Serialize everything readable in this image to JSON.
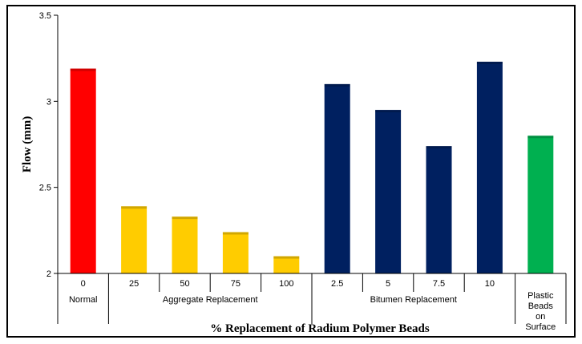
{
  "chart_data": {
    "type": "bar",
    "categories": [
      "0",
      "25",
      "50",
      "75",
      "100",
      "2.5",
      "5",
      "7.5",
      "10",
      ""
    ],
    "values": [
      3.19,
      2.39,
      2.33,
      2.24,
      2.1,
      3.1,
      2.95,
      2.74,
      3.23,
      2.8
    ],
    "colors": [
      "#ff0000",
      "#ffcc00",
      "#ffcc00",
      "#ffcc00",
      "#ffcc00",
      "#002060",
      "#002060",
      "#002060",
      "#002060",
      "#00b050"
    ],
    "groups": [
      {
        "label": "Normal",
        "count": 1
      },
      {
        "label": "Aggregate Replacement",
        "count": 4
      },
      {
        "label": "Bitumen Replacement",
        "count": 4
      },
      {
        "label": "Plastic Beads on Surface",
        "count": 1
      }
    ],
    "xlabel": "% Replacement of Radium Polymer Beads",
    "ylabel": "Flow (mm)",
    "ylim": [
      2,
      3.5
    ],
    "yticks": [
      "2",
      "2.5",
      "3",
      "3.5"
    ],
    "grid": false
  }
}
